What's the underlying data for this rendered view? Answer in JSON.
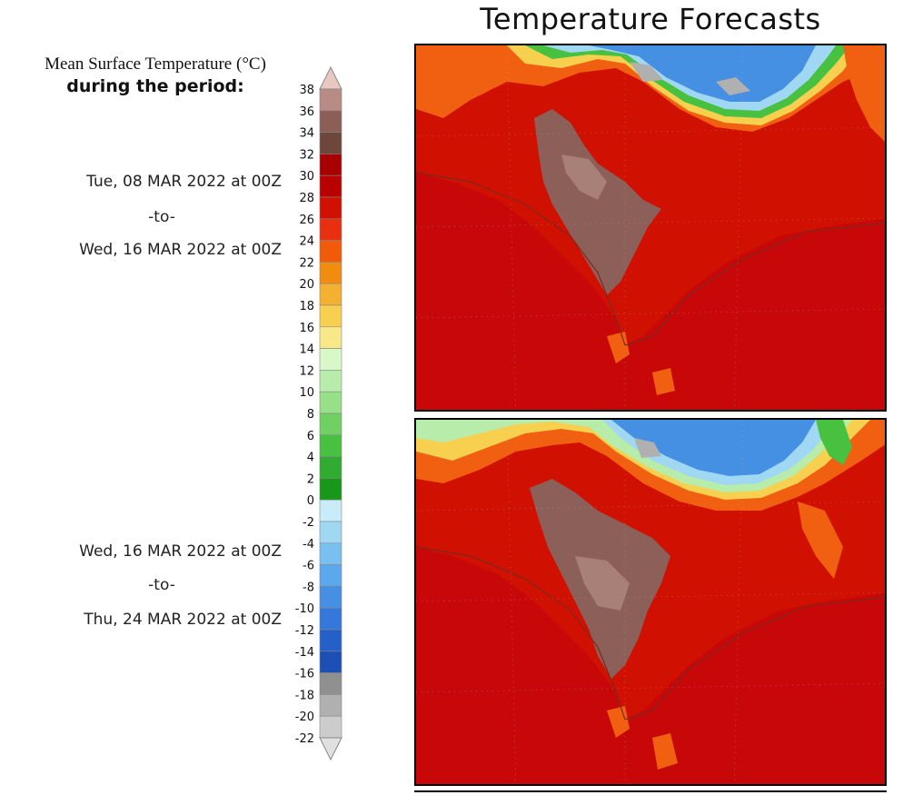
{
  "title": "Temperature Forecasts",
  "legend": {
    "title_line1": "Mean Surface Temperature (°C)",
    "title_line2": "during the period:",
    "ticks": [
      "38",
      "36",
      "34",
      "32",
      "30",
      "28",
      "26",
      "24",
      "22",
      "20",
      "18",
      "16",
      "14",
      "12",
      "10",
      "8",
      "6",
      "4",
      "2",
      "0",
      "-2",
      "-4",
      "-6",
      "-8",
      "-10",
      "-12",
      "-14",
      "-16",
      "-18",
      "-20",
      "-22"
    ],
    "colors": [
      "#e8c8c0",
      "#b88c84",
      "#8c5e56",
      "#6e463c",
      "#a80000",
      "#b80000",
      "#d01000",
      "#e83010",
      "#f05a08",
      "#f08c10",
      "#f4b030",
      "#f8d050",
      "#f8e888",
      "#d8f8c8",
      "#b8ecaa",
      "#98e088",
      "#70d064",
      "#48c040",
      "#30ac30",
      "#189818",
      "#c8ecf8",
      "#a0d8f4",
      "#78c0f0",
      "#5ca8ec",
      "#4690e4",
      "#3478dc",
      "#2460c8",
      "#1c50b4",
      "#909090",
      "#b0b0b0",
      "#cccccc",
      "#e0e0e0"
    ]
  },
  "periods": [
    {
      "start": "Tue, 08 MAR 2022 at 00Z",
      "sep": "-to-",
      "end": "Wed, 16 MAR 2022 at 00Z"
    },
    {
      "start": "Wed, 16 MAR 2022 at 00Z",
      "sep": "-to-",
      "end": "Thu, 24 MAR 2022 at 00Z"
    }
  ],
  "map_colors": {
    "ocean": "#c80808",
    "land_warm": "#d81a08",
    "hot": "#8c6058",
    "hot_light": "#a88078",
    "orange": "#f06010",
    "yellow": "#f8d050",
    "green": "#48c040",
    "light_green": "#b8ecaa",
    "cold_blue": "#4690e4",
    "light_blue": "#a0d8f4",
    "gray": "#b0b0b0",
    "coast": "#7a2a20"
  }
}
